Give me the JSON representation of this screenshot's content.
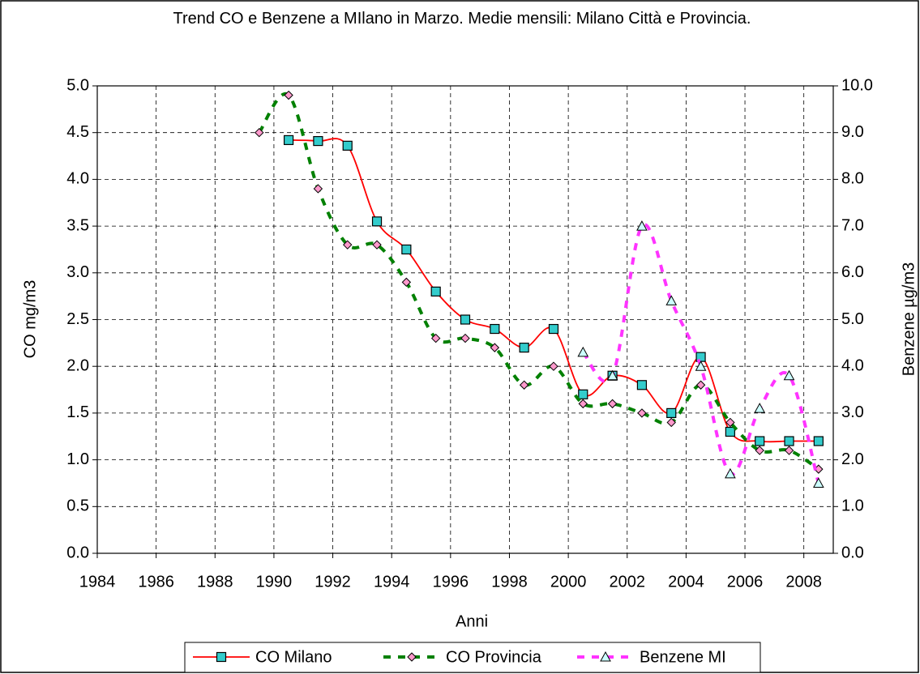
{
  "chart_data": {
    "type": "line",
    "title": "Trend  CO e Benzene a MIlano in Marzo. Medie mensili: Milano Città e Provincia.",
    "x_label": "Anni",
    "y_label": "CO mg/m3",
    "y2_label": "Benzene  µg/m3",
    "x": [
      1989.5,
      1990.5,
      1991.5,
      1992.5,
      1993.5,
      1994.5,
      1995.5,
      1996.5,
      1997.5,
      1998.5,
      1999.5,
      2000.5,
      2001.5,
      2002.5,
      2003.5,
      2004.5,
      2005.5,
      2006.5,
      2007.5,
      2008.5
    ],
    "series": [
      {
        "name": "CO Milano",
        "color": "#ff0000",
        "marker_color": "#33cccc",
        "values": [
          null,
          4.42,
          4.41,
          4.36,
          3.55,
          3.25,
          2.8,
          2.5,
          2.4,
          2.2,
          2.4,
          1.7,
          1.9,
          1.8,
          1.5,
          2.1,
          1.3,
          1.2,
          1.2,
          1.2
        ]
      },
      {
        "name": "CO Provincia",
        "color": "#008000",
        "marker_color": "#ff99cc",
        "values": [
          4.5,
          4.9,
          3.9,
          3.3,
          3.3,
          2.9,
          2.3,
          2.3,
          2.2,
          1.8,
          2.0,
          1.6,
          1.6,
          1.5,
          1.4,
          1.8,
          1.4,
          1.1,
          1.1,
          0.9
        ]
      },
      {
        "name": "Benzene MI",
        "color": "#ff33ff",
        "marker_color": "#ccffff",
        "axis": "y2",
        "values": [
          null,
          null,
          null,
          null,
          null,
          null,
          null,
          null,
          null,
          null,
          null,
          4.3,
          3.8,
          7.0,
          5.4,
          4.0,
          1.7,
          3.1,
          3.8,
          1.5
        ]
      }
    ],
    "xlim": [
      1984,
      2009
    ],
    "xticks": [
      1984,
      1986,
      1988,
      1990,
      1992,
      1994,
      1996,
      1998,
      2000,
      2002,
      2004,
      2006,
      2008
    ],
    "ylim": [
      0,
      5
    ],
    "yticks": [
      {
        "value": 0,
        "label": "0.0"
      },
      {
        "value": 0.5,
        "label": "0.5"
      },
      {
        "value": 1,
        "label": "1.0"
      },
      {
        "value": 1.5,
        "label": "1.5"
      },
      {
        "value": 2,
        "label": "2.0"
      },
      {
        "value": 2.5,
        "label": "2.5"
      },
      {
        "value": 3,
        "label": "3.0"
      },
      {
        "value": 3.5,
        "label": "3.5"
      },
      {
        "value": 4,
        "label": "4.0"
      },
      {
        "value": 4.5,
        "label": "4.5"
      },
      {
        "value": 5,
        "label": "5.0"
      }
    ],
    "y2lim": [
      0,
      10
    ],
    "y2ticks": [
      {
        "value": 0,
        "label": "0.0"
      },
      {
        "value": 1,
        "label": "1.0"
      },
      {
        "value": 2,
        "label": "2.0"
      },
      {
        "value": 3,
        "label": "3.0"
      },
      {
        "value": 4,
        "label": "4.0"
      },
      {
        "value": 5,
        "label": "5.0"
      },
      {
        "value": 6,
        "label": "6.0"
      },
      {
        "value": 7,
        "label": "7.0"
      },
      {
        "value": 8,
        "label": "8.0"
      },
      {
        "value": 9,
        "label": "9.0"
      },
      {
        "value": 10,
        "label": "10.0"
      }
    ],
    "grid": true,
    "legend": "bottom"
  }
}
